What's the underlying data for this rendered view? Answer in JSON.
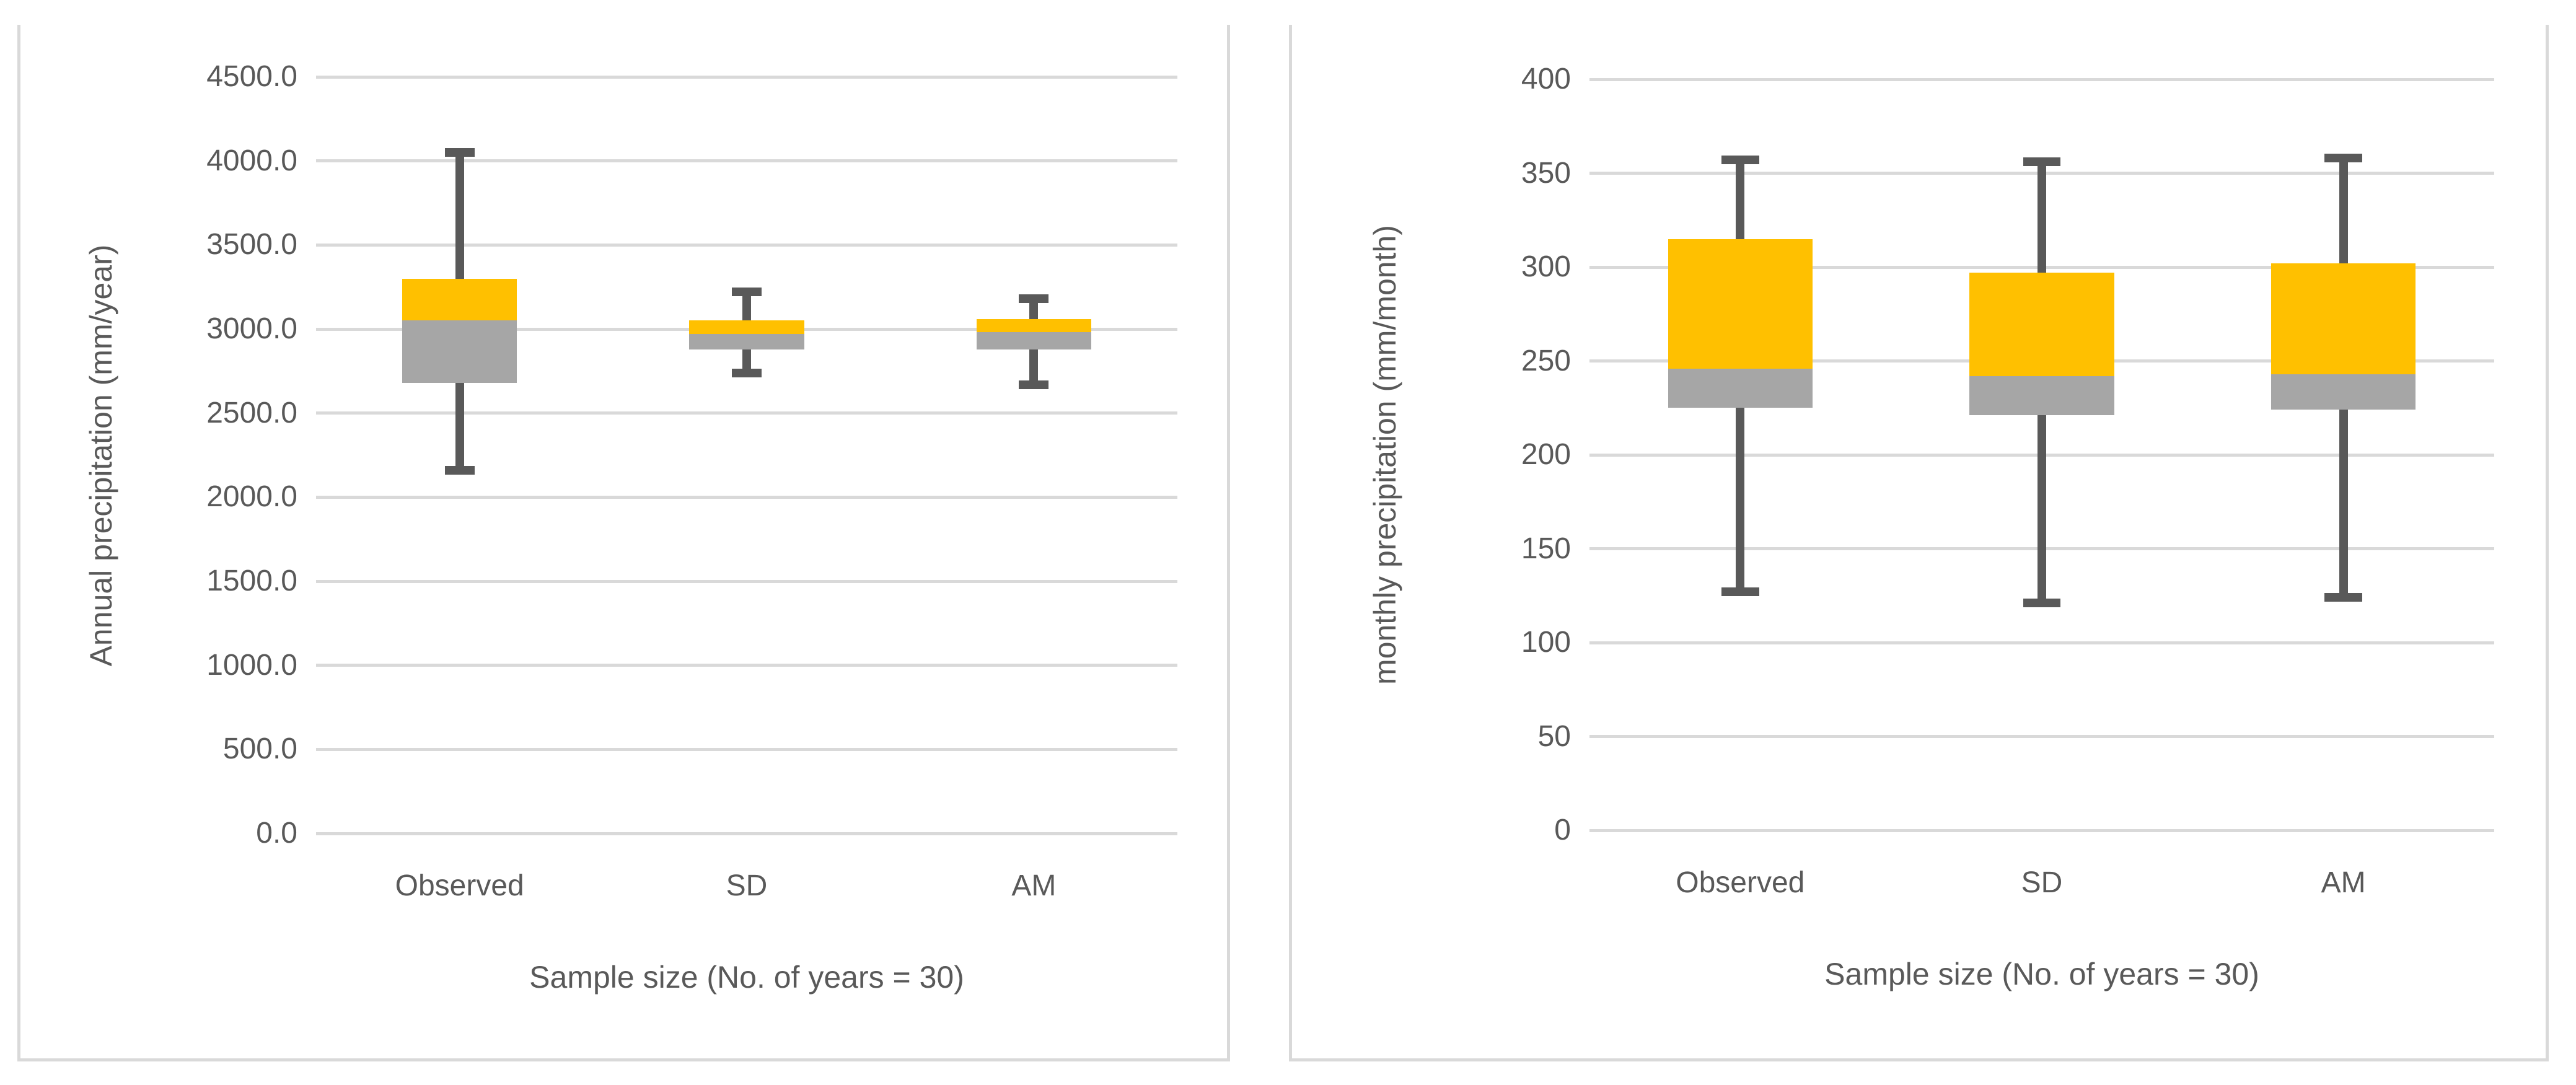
{
  "page": {
    "background": "#FFFFFF"
  },
  "colors": {
    "upper_box": "#FFC000",
    "lower_box": "#A6A6A6",
    "whisker": "#595959",
    "gridline": "#D9D9D9",
    "panel_border": "#D9D9D9",
    "text": "#595959"
  },
  "chart_data": [
    {
      "type": "box",
      "title": "",
      "categories": [
        "Observed",
        "SD",
        "AM"
      ],
      "xlabel": "Sample size (No. of years = 30)",
      "ylabel": "Annual precipitation (mm/year)",
      "ylim": [
        0,
        4500
      ],
      "ytick_step": 500,
      "ytick_labels": [
        "4500.0",
        "4000.0",
        "3500.0",
        "3000.0",
        "2500.0",
        "2000.0",
        "1500.0",
        "1000.0",
        "500.0",
        "0.0"
      ],
      "grid": true,
      "legend": false,
      "series": [
        {
          "name": "Observed",
          "min": 2160,
          "q1": 2680,
          "median": 3050,
          "q3": 3300,
          "max": 4050
        },
        {
          "name": "SD",
          "min": 2740,
          "q1": 2880,
          "median": 2970,
          "q3": 3050,
          "max": 3220
        },
        {
          "name": "AM",
          "min": 2670,
          "q1": 2880,
          "median": 2980,
          "q3": 3060,
          "max": 3180
        }
      ]
    },
    {
      "type": "box",
      "title": "",
      "categories": [
        "Observed",
        "SD",
        "AM"
      ],
      "xlabel": "Sample size (No. of years = 30)",
      "ylabel": "monthly precipitation (mm/month)",
      "ylim": [
        0,
        400
      ],
      "ytick_step": 50,
      "ytick_labels": [
        "400",
        "350",
        "300",
        "250",
        "200",
        "150",
        "100",
        "50",
        "0"
      ],
      "grid": true,
      "legend": false,
      "series": [
        {
          "name": "Observed",
          "min": 127,
          "q1": 225,
          "median": 246,
          "q3": 315,
          "max": 357
        },
        {
          "name": "SD",
          "min": 121,
          "q1": 221,
          "median": 242,
          "q3": 297,
          "max": 356
        },
        {
          "name": "AM",
          "min": 124,
          "q1": 224,
          "median": 243,
          "q3": 302,
          "max": 358
        }
      ]
    }
  ]
}
